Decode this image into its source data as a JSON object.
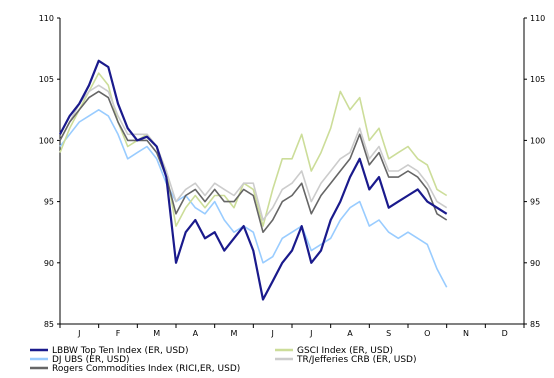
{
  "chart_data": {
    "type": "line",
    "title": "",
    "xlabel": "",
    "ylabel": "",
    "ylim": [
      85,
      110
    ],
    "yticks": [
      85,
      90,
      95,
      100,
      105,
      110
    ],
    "x_categories": [
      "J",
      "F",
      "M",
      "A",
      "M",
      "J",
      "J",
      "A",
      "S",
      "O",
      "N",
      "D"
    ],
    "grid": false,
    "legend_position": "bottom",
    "x": [
      0,
      0.25,
      0.5,
      0.75,
      1.0,
      1.25,
      1.5,
      1.75,
      2.0,
      2.25,
      2.5,
      2.75,
      3.0,
      3.25,
      3.5,
      3.75,
      4.0,
      4.25,
      4.5,
      4.75,
      5.0,
      5.25,
      5.5,
      5.75,
      6.0,
      6.25,
      6.5,
      6.75,
      7.0,
      7.25,
      7.5,
      7.75,
      8.0,
      8.25,
      8.5,
      8.75,
      9.0,
      9.25,
      9.5,
      9.75,
      10.0
    ],
    "series": [
      {
        "name": "LBBW Top Ten Index (ER, USD)",
        "color": "#1a1a8c",
        "values": [
          100.5,
          102.0,
          103.0,
          104.5,
          106.5,
          106.0,
          103.0,
          101.0,
          100.0,
          100.3,
          99.5,
          97.0,
          90.0,
          92.5,
          93.5,
          92.0,
          92.5,
          91.0,
          92.0,
          93.0,
          91.0,
          87.0,
          88.5,
          90.0,
          91.0,
          93.0,
          90.0,
          91.0,
          93.5,
          95.0,
          97.0,
          98.5,
          96.0,
          97.0,
          94.5,
          95.0,
          95.5,
          96.0,
          95.0,
          94.5,
          94.0
        ]
      },
      {
        "name": "DJ UBS (ER, USD)",
        "color": "#99ccff",
        "values": [
          99.5,
          100.5,
          101.5,
          102.0,
          102.5,
          102.0,
          100.5,
          98.5,
          99.0,
          99.5,
          98.5,
          96.5,
          95.0,
          95.5,
          94.5,
          94.0,
          95.0,
          93.5,
          92.5,
          93.0,
          92.5,
          90.0,
          90.5,
          92.0,
          92.5,
          93.0,
          91.0,
          91.5,
          92.0,
          93.5,
          94.5,
          95.0,
          93.0,
          93.5,
          92.5,
          92.0,
          92.5,
          92.0,
          91.5,
          89.5,
          88.0
        ]
      },
      {
        "name": "Rogers Commodities Index (RICI,ER, USD)",
        "color": "#666666",
        "values": [
          100.0,
          101.5,
          102.5,
          103.5,
          104.0,
          103.5,
          101.5,
          100.0,
          100.0,
          100.0,
          99.0,
          97.0,
          94.0,
          95.5,
          96.0,
          95.0,
          96.0,
          95.0,
          95.0,
          96.0,
          95.5,
          92.5,
          93.5,
          95.0,
          95.5,
          96.5,
          94.0,
          95.5,
          96.5,
          97.5,
          98.5,
          100.5,
          98.0,
          99.0,
          97.0,
          97.0,
          97.5,
          97.0,
          96.0,
          94.0,
          93.5
        ]
      },
      {
        "name": "GSCI Index (ER, USD)",
        "color": "#ccdd99",
        "values": [
          99.0,
          101.0,
          102.5,
          104.0,
          105.5,
          104.5,
          101.5,
          99.5,
          100.0,
          100.5,
          99.5,
          97.5,
          93.0,
          94.5,
          95.5,
          94.5,
          95.5,
          95.5,
          94.5,
          96.5,
          96.0,
          93.0,
          96.0,
          98.5,
          98.5,
          100.5,
          97.5,
          99.0,
          101.0,
          104.0,
          102.5,
          103.5,
          100.0,
          101.0,
          98.5,
          99.0,
          99.5,
          98.5,
          98.0,
          96.0,
          95.5
        ]
      },
      {
        "name": "TR/Jefferies CRB (ER, USD)",
        "color": "#cccccc",
        "values": [
          100.0,
          101.5,
          103.0,
          104.0,
          104.5,
          104.0,
          102.0,
          100.5,
          100.5,
          100.5,
          99.5,
          97.5,
          95.0,
          96.0,
          96.5,
          95.5,
          96.5,
          96.0,
          95.5,
          96.5,
          96.5,
          93.5,
          94.5,
          96.0,
          96.5,
          97.5,
          95.0,
          96.5,
          97.5,
          98.5,
          99.0,
          101.0,
          98.5,
          99.5,
          97.5,
          97.5,
          98.0,
          97.5,
          96.5,
          95.0,
          94.5
        ]
      }
    ]
  }
}
